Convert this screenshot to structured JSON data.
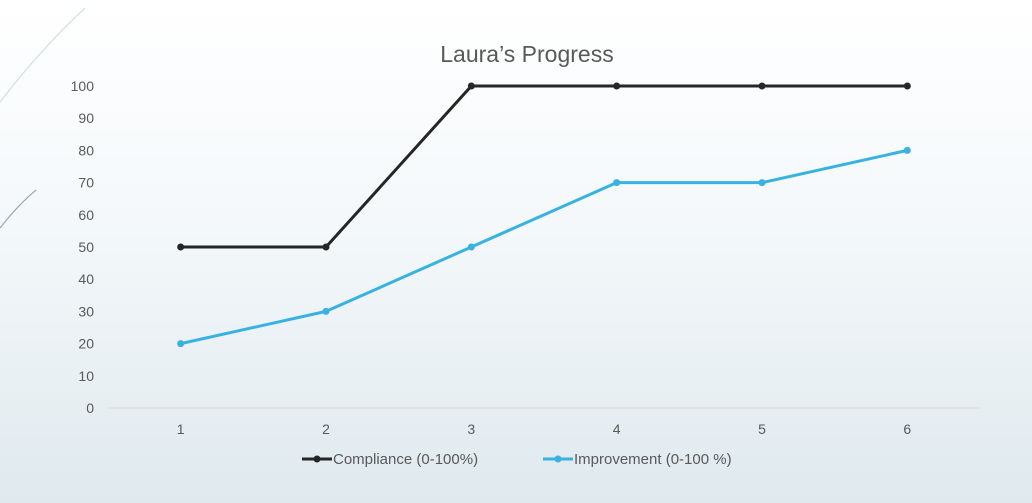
{
  "chart_data": {
    "type": "line",
    "title": "Laura’s Progress",
    "xlabel": "",
    "ylabel": "",
    "categories": [
      "1",
      "2",
      "3",
      "4",
      "5",
      "6"
    ],
    "yticks": [
      "0",
      "10",
      "20",
      "30",
      "40",
      "50",
      "60",
      "70",
      "80",
      "90",
      "100"
    ],
    "ylim": [
      0,
      100
    ],
    "grid": false,
    "legend_position": "bottom",
    "series": [
      {
        "name": "Compliance (0-100%)",
        "values": [
          50,
          50,
          100,
          100,
          100,
          100
        ],
        "color": "#262626"
      },
      {
        "name": "Improvement (0-100 %)",
        "values": [
          20,
          30,
          50,
          70,
          70,
          80
        ],
        "color": "#38b2e0"
      }
    ]
  }
}
